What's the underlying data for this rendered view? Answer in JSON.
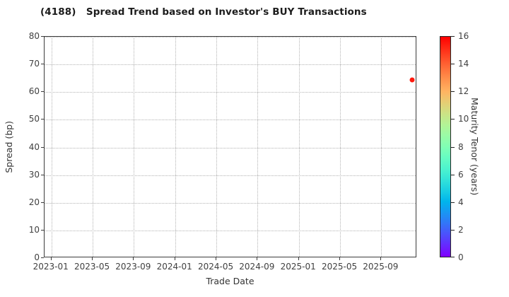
{
  "chart_data": {
    "type": "scatter",
    "title": "(4188)   Spread Trend based on Investor's BUY Transactions",
    "xlabel": "Trade Date",
    "ylabel": "Spread (bp)",
    "x_ticks": [
      "2023-01",
      "2023-05",
      "2023-09",
      "2024-01",
      "2024-05",
      "2024-09",
      "2025-01",
      "2025-05",
      "2025-09"
    ],
    "y_ticks": [
      0,
      10,
      20,
      30,
      40,
      50,
      60,
      70,
      80
    ],
    "ylim": [
      0,
      80
    ],
    "xlim_months": [
      -0.67,
      35.5
    ],
    "grid": true,
    "legend_position": "colorbar-right",
    "colorbar": {
      "label": "Maturity Tenor (years)",
      "min": 0,
      "max": 16,
      "ticks": [
        0,
        2,
        4,
        6,
        8,
        10,
        12,
        14,
        16
      ],
      "colormap": "rainbow"
    },
    "points": [
      {
        "trade_date": "2025-12",
        "spread_bp": 64.3,
        "maturity_tenor_years": 15.5
      }
    ]
  }
}
